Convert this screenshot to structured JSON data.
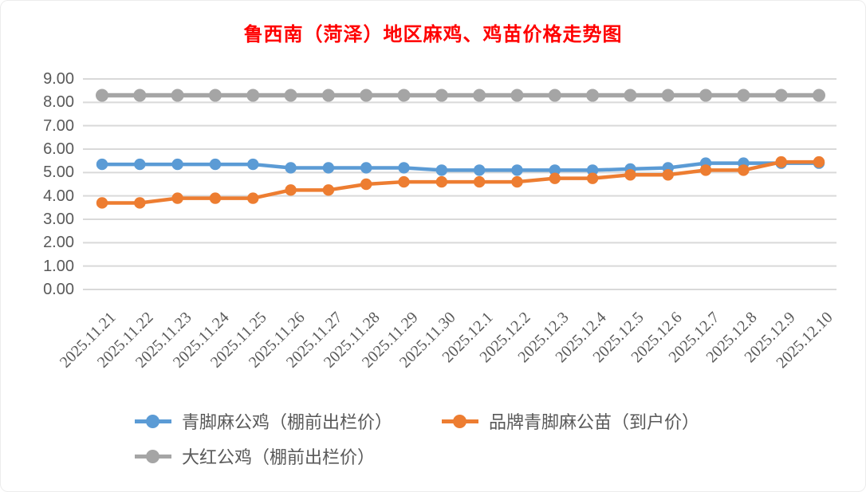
{
  "chart_data": {
    "type": "line",
    "title": "鲁西南（菏泽）地区麻鸡、鸡苗价格走势图",
    "title_color": "#FF0000",
    "categories": [
      "2025.11.21",
      "2025.11.22",
      "2025.11.23",
      "2025.11.24",
      "2025.11.25",
      "2025.11.26",
      "2025.11.27",
      "2025.11.28",
      "2025.11.29",
      "2025.11.30",
      "2025.12.1",
      "2025.12.2",
      "2025.12.3",
      "2025.12.4",
      "2025.12.5",
      "2025.12.6",
      "2025.12.7",
      "2025.12.8",
      "2025.12.9",
      "2025.12.10"
    ],
    "series": [
      {
        "name": "青脚麻公鸡（棚前出栏价）",
        "color": "#5B9BD5",
        "values": [
          5.35,
          5.35,
          5.35,
          5.35,
          5.35,
          5.2,
          5.2,
          5.2,
          5.2,
          5.1,
          5.1,
          5.1,
          5.1,
          5.1,
          5.15,
          5.2,
          5.4,
          5.4,
          5.4,
          5.4
        ]
      },
      {
        "name": "品牌青脚麻公苗（到户价）",
        "color": "#ED7D31",
        "values": [
          3.7,
          3.7,
          3.9,
          3.9,
          3.9,
          4.25,
          4.25,
          4.5,
          4.6,
          4.6,
          4.6,
          4.6,
          4.75,
          4.75,
          4.9,
          4.9,
          5.1,
          5.1,
          5.45,
          5.45
        ]
      },
      {
        "name": "大红公鸡（棚前出栏价）",
        "color": "#A5A5A5",
        "values": [
          8.3,
          8.3,
          8.3,
          8.3,
          8.3,
          8.3,
          8.3,
          8.3,
          8.3,
          8.3,
          8.3,
          8.3,
          8.3,
          8.3,
          8.3,
          8.3,
          8.3,
          8.3,
          8.3,
          8.3
        ]
      }
    ],
    "ylim": [
      0,
      9
    ],
    "ytick_step": 1,
    "ytick_format": "0.00",
    "xlabel": "",
    "ylabel": "",
    "grid": "horizontal",
    "legend_position": "bottom",
    "x_label_rotation": -45
  },
  "axis": {
    "grid_color": "#D9D9D9",
    "tick_color": "#595959"
  }
}
